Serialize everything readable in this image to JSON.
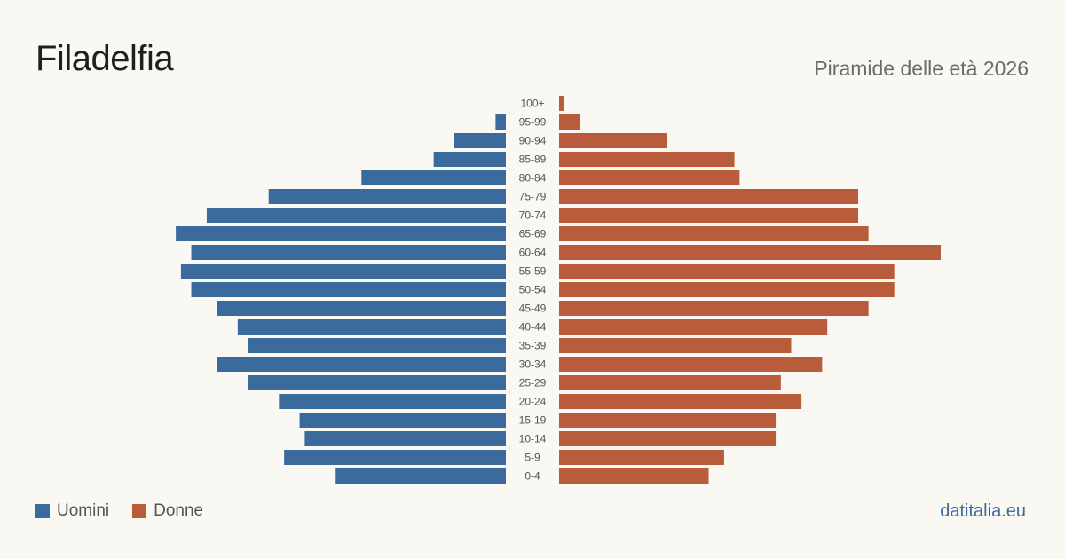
{
  "header": {
    "title": "Filadelfia",
    "subtitle": "Piramide delle età 2026"
  },
  "footer": {
    "brand": "datitalia.eu"
  },
  "colors": {
    "male": "#3b6b9c",
    "female": "#b95c3c",
    "label": "#555555"
  },
  "chart_data": {
    "type": "bar",
    "orientation": "horizontal-pyramid",
    "title": "Filadelfia",
    "subtitle": "Piramide delle età 2026",
    "categories": [
      "100+",
      "95-99",
      "90-94",
      "85-89",
      "80-84",
      "75-79",
      "70-74",
      "65-69",
      "60-64",
      "55-59",
      "50-54",
      "45-49",
      "40-44",
      "35-39",
      "30-34",
      "25-29",
      "20-24",
      "15-19",
      "10-14",
      "5-9",
      "0-4"
    ],
    "series": [
      {
        "name": "Uomini",
        "side": "left",
        "color": "#3b6b9c",
        "values": [
          0,
          2,
          10,
          14,
          28,
          46,
          58,
          64,
          61,
          63,
          61,
          56,
          52,
          50,
          56,
          50,
          44,
          40,
          39,
          43,
          33
        ]
      },
      {
        "name": "Donne",
        "side": "right",
        "color": "#b95c3c",
        "values": [
          1,
          4,
          21,
          34,
          35,
          58,
          58,
          60,
          74,
          65,
          65,
          60,
          52,
          45,
          51,
          43,
          47,
          42,
          42,
          32,
          29
        ]
      }
    ],
    "xlim": [
      0,
      75
    ],
    "grid": false,
    "legend": "bottom-left"
  }
}
